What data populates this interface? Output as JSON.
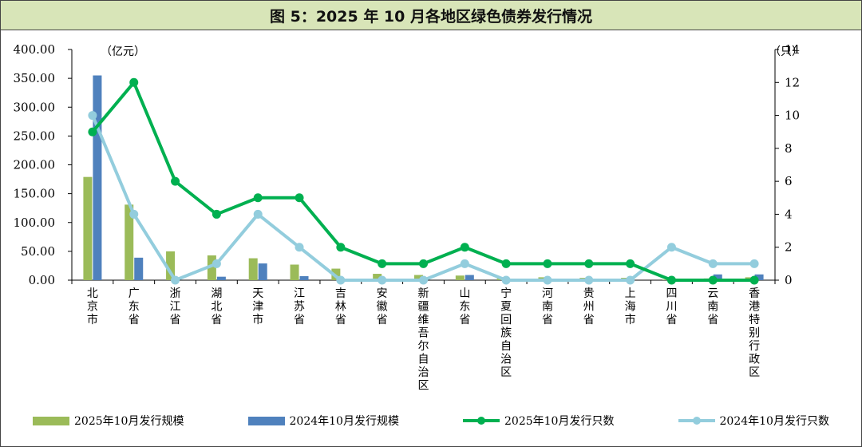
{
  "title": "图 5：2025 年 10 月各地区绿色债券发行情况",
  "chart_data": {
    "type": "bar+line",
    "title": "图 5：2025 年 10 月各地区绿色债券发行情况",
    "left_axis": {
      "unit": "（亿元）",
      "ylim": [
        0,
        400
      ],
      "ticks": [
        "0.00",
        "50.00",
        "100.00",
        "150.00",
        "200.00",
        "250.00",
        "300.00",
        "350.00",
        "400.00"
      ],
      "tick_values": [
        0,
        50,
        100,
        150,
        200,
        250,
        300,
        350,
        400
      ]
    },
    "right_axis": {
      "unit": "（只）",
      "ylim": [
        0,
        14
      ],
      "ticks": [
        "0",
        "2",
        "4",
        "6",
        "8",
        "10",
        "12",
        "14"
      ],
      "tick_values": [
        0,
        2,
        4,
        6,
        8,
        10,
        12,
        14
      ]
    },
    "categories": [
      "北京市",
      "广东省",
      "浙江省",
      "湖北省",
      "天津市",
      "江苏省",
      "吉林省",
      "安徽省",
      "新疆维吾尔自治区",
      "山东省",
      "宁夏回族自治区",
      "河南省",
      "贵州省",
      "上海市",
      "四川省",
      "云南省",
      "香港特别行政区"
    ],
    "series": [
      {
        "name": "2025年10月发行规模",
        "kind": "bar",
        "axis": "left",
        "color": "#9bbb59",
        "values": [
          179,
          131,
          50,
          43,
          38,
          27,
          20,
          11,
          9,
          8,
          5,
          5,
          4,
          4,
          1,
          3,
          5
        ]
      },
      {
        "name": "2024年10月发行规模",
        "kind": "bar",
        "axis": "left",
        "color": "#4f81bd",
        "values": [
          355,
          39,
          0,
          6,
          29,
          7,
          0,
          0,
          0,
          9,
          0,
          0,
          0,
          0,
          0,
          10,
          10
        ]
      },
      {
        "name": "2025年10月发行只数",
        "kind": "line",
        "axis": "right",
        "color": "#00b050",
        "values": [
          9,
          12,
          6,
          4,
          5,
          5,
          2,
          1,
          1,
          2,
          1,
          1,
          1,
          1,
          0,
          0,
          0
        ]
      },
      {
        "name": "2024年10月发行只数",
        "kind": "line",
        "axis": "right",
        "color": "#93cddd",
        "values": [
          10,
          4,
          0,
          1,
          4,
          2,
          0,
          0,
          0,
          1,
          0,
          0,
          0,
          0,
          2,
          1,
          1
        ]
      }
    ],
    "legend_position": "bottom"
  }
}
